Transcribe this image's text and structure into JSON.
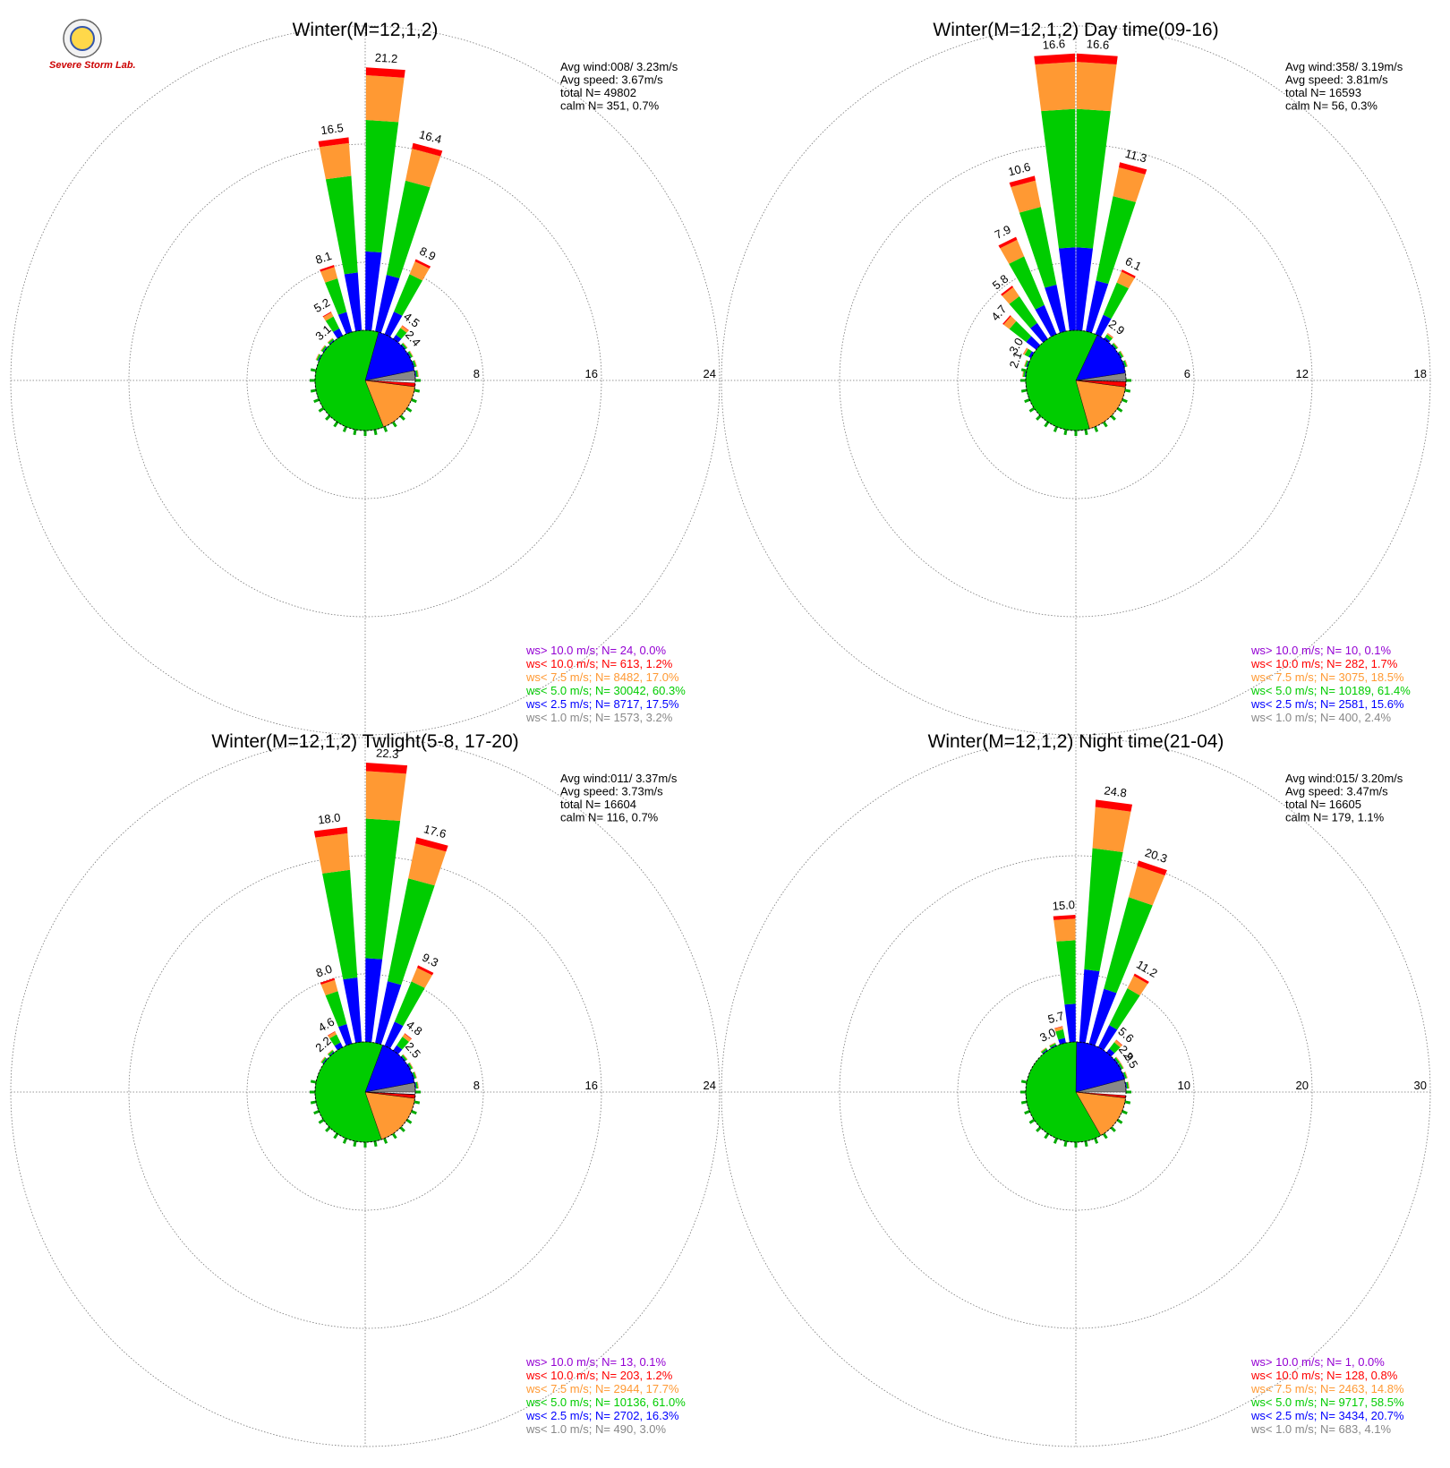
{
  "logo": {
    "text": "Severe Storm Lab."
  },
  "chart_data": [
    {
      "type": "wind-rose",
      "title": "Winter(M=12,1,2)",
      "rings": [
        "8",
        "16",
        "24"
      ],
      "rmax": 24,
      "stats": {
        "avg_wind": "Avg wind:008/ 3.23m/s",
        "avg_speed": "Avg speed: 3.67m/s",
        "total": "total N=     49802",
        "calm": "calm N=    351,   0.7%"
      },
      "legend": [
        {
          "text": "ws> 10.0 m/s; N=    24,  0.0%",
          "color": "#9400D3"
        },
        {
          "text": "ws< 10.0 m/s; N=   613,  1.2%",
          "color": "#FF0000"
        },
        {
          "text": "ws<  7.5 m/s; N=  8482, 17.0%",
          "color": "#FF9933"
        },
        {
          "text": "ws<  5.0 m/s; N= 30042, 60.3%",
          "color": "#00CC00"
        },
        {
          "text": "ws<  2.5 m/s; N=  8717, 17.5%",
          "color": "#0000FF"
        },
        {
          "text": "ws<  1.0 m/s; N=  1573,  3.2%",
          "color": "#888888"
        }
      ],
      "pie": [
        3.2,
        17.5,
        60.3,
        17.0,
        1.2,
        0.0
      ],
      "bars": [
        {
          "dir": 3.75,
          "total": 21.2,
          "label": "21.2"
        },
        {
          "dir": 15.0,
          "total": 16.4,
          "label": "16.4"
        },
        {
          "dir": 26.25,
          "total": 8.9,
          "label": "8.9"
        },
        {
          "dir": 37.5,
          "total": 4.5,
          "label": "4.5"
        },
        {
          "dir": 48.75,
          "total": 2.4,
          "label": "2.4"
        },
        {
          "dir": 60.0,
          "total": 1.5,
          "label": ""
        },
        {
          "dir": 71.25,
          "total": 1.0,
          "label": ""
        },
        {
          "dir": 82.5,
          "total": 0.7,
          "label": ""
        },
        {
          "dir": 352.5,
          "total": 16.5,
          "label": "16.5"
        },
        {
          "dir": 341.25,
          "total": 8.1,
          "label": "8.1"
        },
        {
          "dir": 330.0,
          "total": 5.2,
          "label": "5.2"
        },
        {
          "dir": 318.75,
          "total": 3.1,
          "label": "3.1"
        },
        {
          "dir": 307.5,
          "total": 1.8,
          "label": ""
        },
        {
          "dir": 296.25,
          "total": 1.2,
          "label": ""
        }
      ]
    },
    {
      "type": "wind-rose",
      "title": "Winter(M=12,1,2) Day time(09-16)",
      "rings": [
        "6",
        "12",
        "18"
      ],
      "rmax": 18,
      "stats": {
        "avg_wind": "Avg wind:358/ 3.19m/s",
        "avg_speed": "Avg speed: 3.81m/s",
        "total": "total N=     16593",
        "calm": "calm N=     56,   0.3%"
      },
      "legend": [
        {
          "text": "ws> 10.0 m/s; N=    10,  0.1%",
          "color": "#9400D3"
        },
        {
          "text": "ws< 10.0 m/s; N=   282,  1.7%",
          "color": "#FF0000"
        },
        {
          "text": "ws<  7.5 m/s; N=  3075, 18.5%",
          "color": "#FF9933"
        },
        {
          "text": "ws<  5.0 m/s; N= 10189, 61.4%",
          "color": "#00CC00"
        },
        {
          "text": "ws<  2.5 m/s; N=  2581, 15.6%",
          "color": "#0000FF"
        },
        {
          "text": "ws<  1.0 m/s; N=   400,  2.4%",
          "color": "#888888"
        }
      ],
      "pie": [
        2.4,
        15.6,
        61.4,
        18.5,
        1.7,
        0.1
      ],
      "bars": [
        {
          "dir": 3.75,
          "total": 16.6,
          "label": "16.6"
        },
        {
          "dir": 15.0,
          "total": 11.3,
          "label": "11.3"
        },
        {
          "dir": 26.25,
          "total": 6.1,
          "label": "6.1"
        },
        {
          "dir": 37.5,
          "total": 2.9,
          "label": "2.9"
        },
        {
          "dir": 48.75,
          "total": 1.4,
          "label": ""
        },
        {
          "dir": 60.0,
          "total": 0.9,
          "label": ""
        },
        {
          "dir": 71.25,
          "total": 0.6,
          "label": ""
        },
        {
          "dir": 356.25,
          "total": 16.6,
          "label": "16.6"
        },
        {
          "dir": 345.0,
          "total": 10.6,
          "label": "10.6"
        },
        {
          "dir": 333.75,
          "total": 7.9,
          "label": "7.9"
        },
        {
          "dir": 322.5,
          "total": 5.8,
          "label": "5.8"
        },
        {
          "dir": 311.25,
          "total": 4.7,
          "label": "4.7"
        },
        {
          "dir": 300.0,
          "total": 3.0,
          "label": "3.0"
        },
        {
          "dir": 288.75,
          "total": 2.1,
          "label": "2.1"
        },
        {
          "dir": 277.5,
          "total": 1.2,
          "label": ""
        }
      ]
    },
    {
      "type": "wind-rose",
      "title": "Winter(M=12,1,2) Twlight(5-8, 17-20)",
      "rings": [
        "8",
        "16",
        "24"
      ],
      "rmax": 24,
      "stats": {
        "avg_wind": "Avg wind:011/ 3.37m/s",
        "avg_speed": "Avg speed: 3.73m/s",
        "total": "total N=     16604",
        "calm": "calm N=    116,   0.7%"
      },
      "legend": [
        {
          "text": "ws> 10.0 m/s; N=    13,  0.1%",
          "color": "#9400D3"
        },
        {
          "text": "ws< 10.0 m/s; N=   203,  1.2%",
          "color": "#FF0000"
        },
        {
          "text": "ws<  7.5 m/s; N=  2944, 17.7%",
          "color": "#FF9933"
        },
        {
          "text": "ws<  5.0 m/s; N= 10136, 61.0%",
          "color": "#00CC00"
        },
        {
          "text": "ws<  2.5 m/s; N=  2702, 16.3%",
          "color": "#0000FF"
        },
        {
          "text": "ws<  1.0 m/s; N=   490,  3.0%",
          "color": "#888888"
        }
      ],
      "pie": [
        3.0,
        16.3,
        61.0,
        17.7,
        1.2,
        0.1
      ],
      "bars": [
        {
          "dir": 3.75,
          "total": 22.3,
          "label": "22.3"
        },
        {
          "dir": 15.0,
          "total": 17.6,
          "label": "17.6"
        },
        {
          "dir": 26.25,
          "total": 9.3,
          "label": "9.3"
        },
        {
          "dir": 37.5,
          "total": 4.8,
          "label": "4.8"
        },
        {
          "dir": 48.75,
          "total": 2.5,
          "label": "2.5"
        },
        {
          "dir": 60.0,
          "total": 1.5,
          "label": ""
        },
        {
          "dir": 71.25,
          "total": 1.0,
          "label": ""
        },
        {
          "dir": 82.5,
          "total": 0.7,
          "label": ""
        },
        {
          "dir": 352.5,
          "total": 18.0,
          "label": "18.0"
        },
        {
          "dir": 341.25,
          "total": 8.0,
          "label": "8.0"
        },
        {
          "dir": 330.0,
          "total": 4.6,
          "label": "4.6"
        },
        {
          "dir": 318.75,
          "total": 2.2,
          "label": "2.2"
        },
        {
          "dir": 307.5,
          "total": 1.3,
          "label": ""
        }
      ]
    },
    {
      "type": "wind-rose",
      "title": "Winter(M=12,1,2) Night time(21-04)",
      "rings": [
        "10",
        "20",
        "30"
      ],
      "rmax": 30,
      "stats": {
        "avg_wind": "Avg wind:015/ 3.20m/s",
        "avg_speed": "Avg speed: 3.47m/s",
        "total": "total N=     16605",
        "calm": "calm N=    179,   1.1%"
      },
      "legend": [
        {
          "text": "ws> 10.0 m/s; N=     1,  0.0%",
          "color": "#9400D3"
        },
        {
          "text": "ws< 10.0 m/s; N=   128,  0.8%",
          "color": "#FF0000"
        },
        {
          "text": "ws<  7.5 m/s; N=  2463, 14.8%",
          "color": "#FF9933"
        },
        {
          "text": "ws<  5.0 m/s; N=  9717, 58.5%",
          "color": "#00CC00"
        },
        {
          "text": "ws<  2.5 m/s; N=  3434, 20.7%",
          "color": "#0000FF"
        },
        {
          "text": "ws<  1.0 m/s; N=   683,  4.1%",
          "color": "#888888"
        }
      ],
      "pie": [
        4.1,
        20.7,
        58.5,
        14.8,
        0.8,
        0.0
      ],
      "bars": [
        {
          "dir": 7.5,
          "total": 24.8,
          "label": "24.8"
        },
        {
          "dir": 18.75,
          "total": 20.3,
          "label": "20.3"
        },
        {
          "dir": 30.0,
          "total": 11.2,
          "label": "11.2"
        },
        {
          "dir": 41.25,
          "total": 5.6,
          "label": "5.6"
        },
        {
          "dir": 52.5,
          "total": 2.9,
          "label": "2.9"
        },
        {
          "dir": 60.0,
          "total": 2.5,
          "label": "2.5"
        },
        {
          "dir": 71.25,
          "total": 1.5,
          "label": ""
        },
        {
          "dir": 82.5,
          "total": 1.0,
          "label": ""
        },
        {
          "dir": 356.25,
          "total": 15.0,
          "label": "15.0"
        },
        {
          "dir": 345.0,
          "total": 5.7,
          "label": "5.7"
        },
        {
          "dir": 333.75,
          "total": 3.0,
          "label": "3.0"
        },
        {
          "dir": 322.5,
          "total": 1.4,
          "label": ""
        }
      ]
    }
  ]
}
